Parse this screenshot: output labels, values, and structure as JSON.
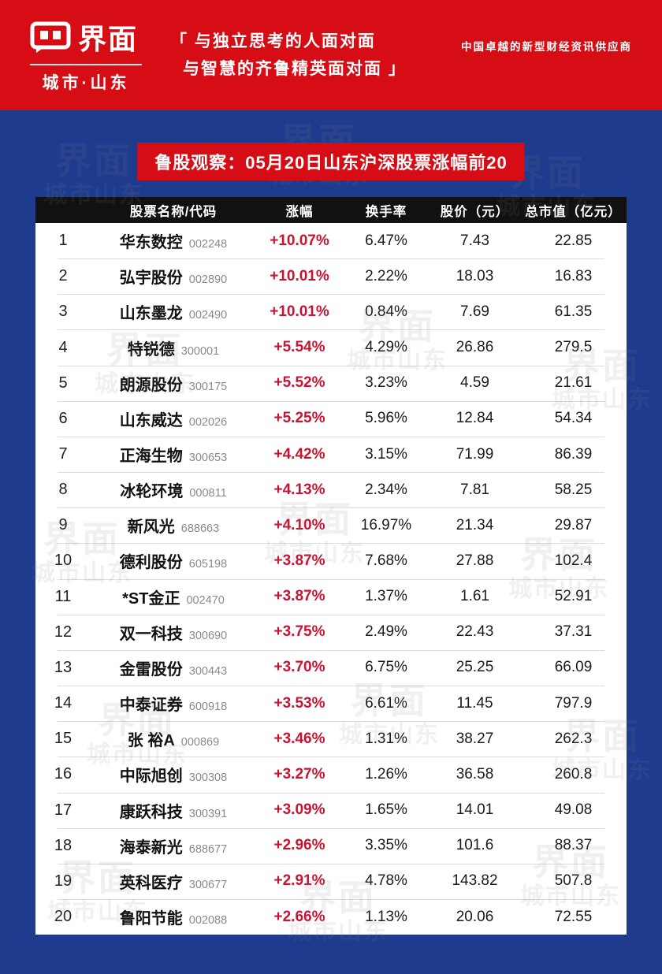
{
  "header": {
    "brand": "界面",
    "brand_sub": "城市·山东",
    "slogan_line1": "「 与独立思考的人面对面",
    "slogan_line2": "与智慧的齐鲁精英面对面 」",
    "tagline": "中国卓越的新型财经资讯供应商"
  },
  "banner": {
    "title": "鲁股观察：05月20日山东沪深股票涨幅前20"
  },
  "chart_data": {
    "type": "table",
    "title": "鲁股观察：05月20日山东沪深股票涨幅前20",
    "columns": [
      "股票名称/代码",
      "涨幅",
      "换手率",
      "股价（元）",
      "总市值（亿元）"
    ],
    "rows": [
      {
        "rank": 1,
        "name": "华东数控",
        "code": "002248",
        "change": "+10.07%",
        "turnover": "6.47%",
        "price": "7.43",
        "market_cap": "22.85"
      },
      {
        "rank": 2,
        "name": "弘宇股份",
        "code": "002890",
        "change": "+10.01%",
        "turnover": "2.22%",
        "price": "18.03",
        "market_cap": "16.83"
      },
      {
        "rank": 3,
        "name": "山东墨龙",
        "code": "002490",
        "change": "+10.01%",
        "turnover": "0.84%",
        "price": "7.69",
        "market_cap": "61.35"
      },
      {
        "rank": 4,
        "name": "特锐德",
        "code": "300001",
        "change": "+5.54%",
        "turnover": "4.29%",
        "price": "26.86",
        "market_cap": "279.5"
      },
      {
        "rank": 5,
        "name": "朗源股份",
        "code": "300175",
        "change": "+5.52%",
        "turnover": "3.23%",
        "price": "4.59",
        "market_cap": "21.61"
      },
      {
        "rank": 6,
        "name": "山东威达",
        "code": "002026",
        "change": "+5.25%",
        "turnover": "5.96%",
        "price": "12.84",
        "market_cap": "54.34"
      },
      {
        "rank": 7,
        "name": "正海生物",
        "code": "300653",
        "change": "+4.42%",
        "turnover": "3.15%",
        "price": "71.99",
        "market_cap": "86.39"
      },
      {
        "rank": 8,
        "name": "冰轮环境",
        "code": "000811",
        "change": "+4.13%",
        "turnover": "2.34%",
        "price": "7.81",
        "market_cap": "58.25"
      },
      {
        "rank": 9,
        "name": "新风光",
        "code": "688663",
        "change": "+4.10%",
        "turnover": "16.97%",
        "price": "21.34",
        "market_cap": "29.87"
      },
      {
        "rank": 10,
        "name": "德利股份",
        "code": "605198",
        "change": "+3.87%",
        "turnover": "7.68%",
        "price": "27.88",
        "market_cap": "102.4"
      },
      {
        "rank": 11,
        "name": "*ST金正",
        "code": "002470",
        "change": "+3.87%",
        "turnover": "1.37%",
        "price": "1.61",
        "market_cap": "52.91"
      },
      {
        "rank": 12,
        "name": "双一科技",
        "code": "300690",
        "change": "+3.75%",
        "turnover": "2.49%",
        "price": "22.43",
        "market_cap": "37.31"
      },
      {
        "rank": 13,
        "name": "金雷股份",
        "code": "300443",
        "change": "+3.70%",
        "turnover": "6.75%",
        "price": "25.25",
        "market_cap": "66.09"
      },
      {
        "rank": 14,
        "name": "中泰证券",
        "code": "600918",
        "change": "+3.53%",
        "turnover": "6.61%",
        "price": "11.45",
        "market_cap": "797.9"
      },
      {
        "rank": 15,
        "name": "张 裕A",
        "code": "000869",
        "change": "+3.46%",
        "turnover": "1.31%",
        "price": "38.27",
        "market_cap": "262.3"
      },
      {
        "rank": 16,
        "name": "中际旭创",
        "code": "300308",
        "change": "+3.27%",
        "turnover": "1.26%",
        "price": "36.58",
        "market_cap": "260.8"
      },
      {
        "rank": 17,
        "name": "康跃科技",
        "code": "300391",
        "change": "+3.09%",
        "turnover": "1.65%",
        "price": "14.01",
        "market_cap": "49.08"
      },
      {
        "rank": 18,
        "name": "海泰新光",
        "code": "688677",
        "change": "+2.96%",
        "turnover": "3.35%",
        "price": "101.6",
        "market_cap": "88.37"
      },
      {
        "rank": 19,
        "name": "英科医疗",
        "code": "300677",
        "change": "+2.91%",
        "turnover": "4.78%",
        "price": "143.82",
        "market_cap": "507.8"
      },
      {
        "rank": 20,
        "name": "鲁阳节能",
        "code": "002088",
        "change": "+2.66%",
        "turnover": "1.13%",
        "price": "20.06",
        "market_cap": "72.55"
      }
    ]
  },
  "watermark": {
    "brand": "界面",
    "sub": "城市山东"
  },
  "colors": {
    "masthead_red": "#d70d16",
    "body_blue": "#1e3b8d",
    "table_header_bg": "#111111",
    "change_red": "#c81432"
  }
}
